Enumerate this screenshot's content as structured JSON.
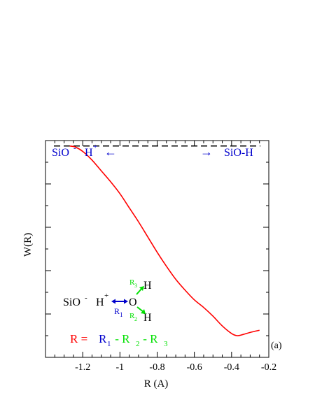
{
  "chart_data": {
    "type": "line",
    "title": "",
    "xlabel": "R (A)",
    "ylabel": "W(R)",
    "panel_label": "(a)",
    "xlim": [
      -1.4,
      -0.2
    ],
    "xticks": [
      -1.2,
      -1,
      -0.8,
      -0.6,
      -0.4,
      -0.2
    ],
    "xtick_labels": [
      "-1.2",
      "-1",
      "-0.8",
      "-0.6",
      "-0.4",
      "-0.2"
    ],
    "ylim": [
      0,
      1
    ],
    "y_tick_labels_shown": false,
    "grid": false,
    "reference_line": {
      "y": 0.975,
      "style": "dashed",
      "color": "#000000"
    },
    "series": [
      {
        "color": "#ff0000",
        "x": [
          -1.27,
          -1.24,
          -1.2,
          -1.15,
          -1.1,
          -1.05,
          -1.0,
          -0.95,
          -0.9,
          -0.85,
          -0.8,
          -0.75,
          -0.7,
          -0.65,
          -0.6,
          -0.55,
          -0.5,
          -0.45,
          -0.4,
          -0.37,
          -0.34,
          -0.3,
          -0.25
        ],
        "y": [
          0.975,
          0.97,
          0.95,
          0.91,
          0.86,
          0.81,
          0.755,
          0.69,
          0.625,
          0.555,
          0.485,
          0.42,
          0.36,
          0.31,
          0.265,
          0.23,
          0.19,
          0.145,
          0.11,
          0.1,
          0.105,
          0.115,
          0.125
        ]
      }
    ],
    "annotations": {
      "top_left": {
        "sio": "SiO",
        "sio_sup": "-",
        "h": "H",
        "h_sup": "+",
        "arrow": "←"
      },
      "top_right": {
        "arrow": "→",
        "text": "SiO-H"
      },
      "molecule": {
        "sio": "SiO",
        "sio_sup": "-",
        "h_plus": "H",
        "h_plus_sup": "+",
        "o": "O",
        "h_top": "H",
        "h_bottom": "H",
        "r1": "R",
        "r1_sub": "1",
        "r2": "R",
        "r2_sub": "2",
        "r3": "R",
        "r3_sub": "3"
      },
      "formula": {
        "lhs": "R = ",
        "r1": "R",
        "r1_sub": "1",
        "rest": " - R",
        "r2_sub": "2",
        "minus": " - R",
        "r3_sub": "3"
      }
    },
    "colors": {
      "curve": "#ff0000",
      "blue": "#0000cc",
      "green": "#00e000",
      "text": "#000000"
    }
  }
}
